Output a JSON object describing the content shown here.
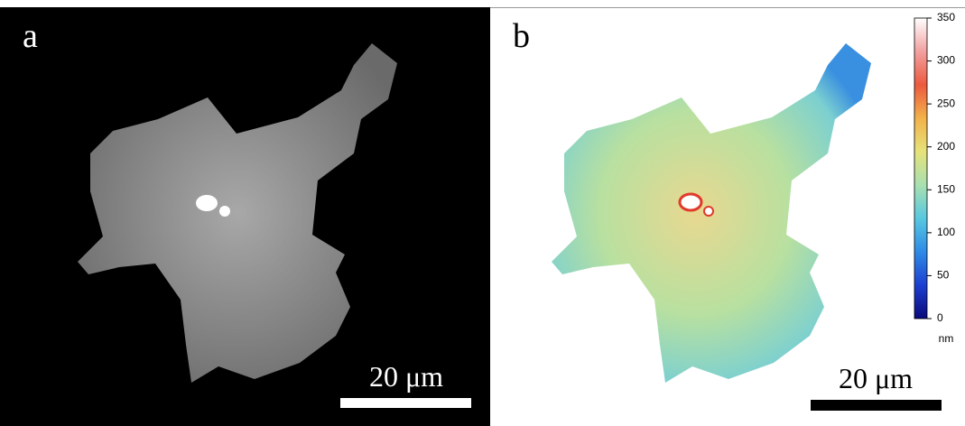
{
  "panels": [
    {
      "label": "a",
      "scale_bar": "20 μm"
    },
    {
      "label": "b",
      "scale_bar": "20 μm"
    }
  ],
  "colorbar": {
    "lim": [
      0,
      350
    ],
    "ticks": [
      0,
      50,
      100,
      150,
      200,
      250,
      300,
      350
    ],
    "unit": "nm",
    "colors": [
      "#0a0a7a",
      "#1c3fd0",
      "#2e8be6",
      "#58c8e0",
      "#a8e0b0",
      "#e6e27a",
      "#f2b24a",
      "#ec5a3e",
      "#f2a0a0",
      "#ffffff"
    ]
  }
}
